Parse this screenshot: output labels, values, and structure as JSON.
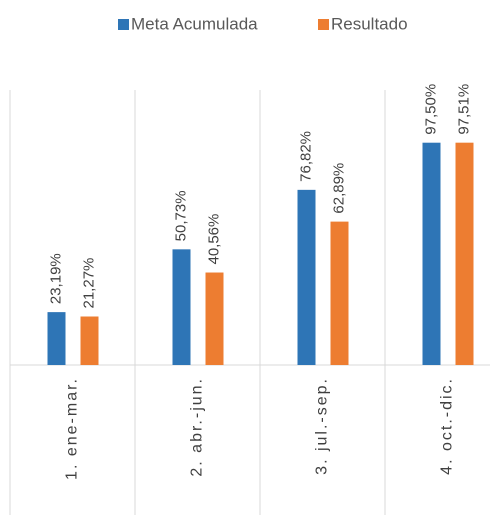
{
  "chart_data": {
    "type": "bar",
    "categories": [
      "1. ene-mar.",
      "2. abr.-jun.",
      "3. jul.-sep.",
      "4. oct.-dic."
    ],
    "series": [
      {
        "name": "Meta Acumulada",
        "color": "#2e75b6",
        "values": [
          23.19,
          50.73,
          76.82,
          97.5
        ],
        "value_labels": [
          "23,19%",
          "50,73%",
          "76,82%",
          "97,50%"
        ]
      },
      {
        "name": "Resultado",
        "color": "#ed7d31",
        "values": [
          21.27,
          40.56,
          62.89,
          97.51
        ],
        "value_labels": [
          "21,27%",
          "40,56%",
          "62,89%",
          "97,51%"
        ]
      }
    ],
    "ylim": [
      0,
      100
    ],
    "legend": "top"
  }
}
